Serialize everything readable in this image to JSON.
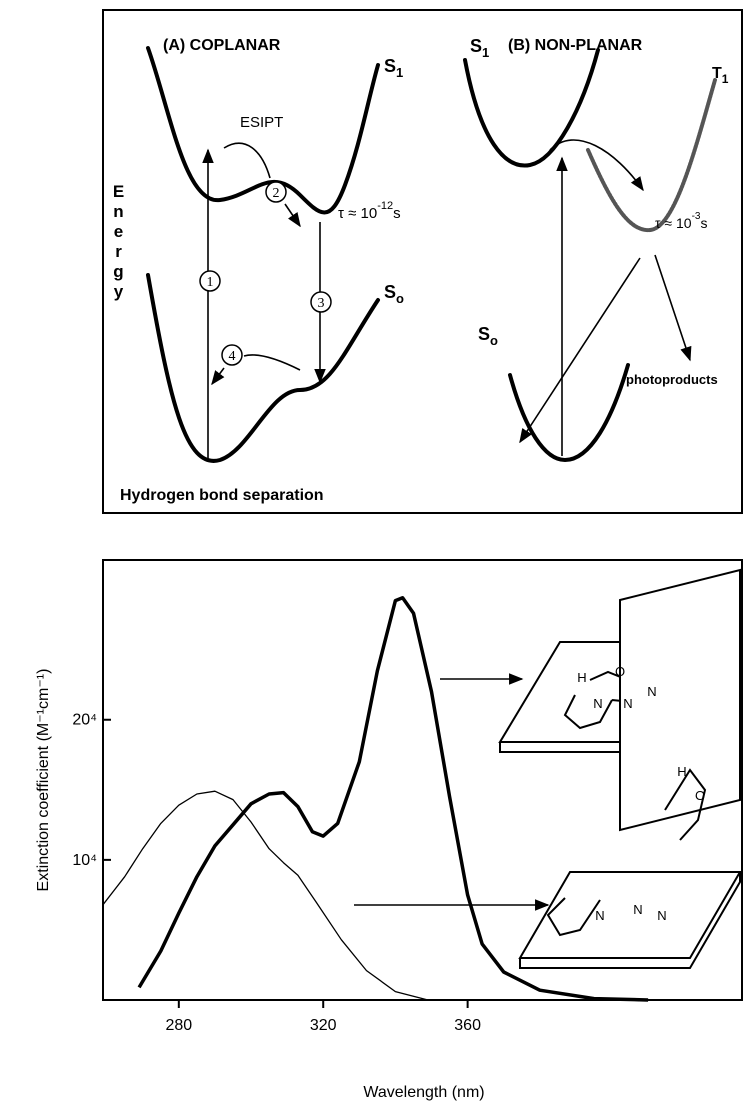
{
  "diagram": {
    "panel_a": {
      "title": "(A) COPLANAR",
      "s1": "S",
      "s1_sub": "1",
      "s0": "S",
      "s0_sub": "o",
      "esipt": "ESIPT",
      "steps": [
        "1",
        "2",
        "3",
        "4"
      ],
      "lifetime": {
        "prefix": "τ ≈ 10",
        "exp": "-12",
        "unit": "s"
      }
    },
    "panel_b": {
      "title": "(B) NON-PLANAR",
      "s1": "S",
      "s1_sub": "1",
      "t1": "T",
      "t1_sub": "1",
      "s0": "S",
      "s0_sub": "o",
      "lifetime": {
        "prefix": "τ ≈ 10",
        "exp": "-3",
        "unit": "s"
      },
      "photoproducts": "photoproducts"
    },
    "energy_axis": "Energy",
    "x_axis": "Hydrogen bond separation"
  },
  "chart_data": {
    "type": "line",
    "x_label": "Wavelength (nm)",
    "y_label": "Extinction coefficient  (M⁻¹cm⁻¹)",
    "xlim": [
      259,
      436
    ],
    "xticks": [
      280,
      320,
      360
    ],
    "ylim": [
      0,
      31400
    ],
    "yticks": [
      {
        "value": 10000,
        "label": "10⁴"
      },
      {
        "value": 20000,
        "label": "20⁴"
      }
    ],
    "series": [
      {
        "color": "#000000",
        "x": [
          259,
          265,
          270,
          275,
          280,
          285,
          290,
          295,
          300,
          305,
          309,
          313,
          318,
          325,
          332,
          340,
          349
        ],
        "values": [
          6800,
          8800,
          10800,
          12600,
          13900,
          14700,
          14900,
          14300,
          12700,
          10800,
          9800,
          8900,
          7000,
          4300,
          2100,
          600,
          0
        ]
      },
      {
        "color": "#000000",
        "x": [
          269,
          275,
          280,
          285,
          290,
          295,
          300,
          305,
          309,
          313,
          317,
          320,
          324,
          330,
          335,
          340,
          342,
          345,
          350,
          355,
          360,
          364,
          370,
          380,
          395,
          410
        ],
        "values": [
          900,
          3500,
          6200,
          8800,
          11000,
          12500,
          14000,
          14700,
          14800,
          13800,
          12000,
          11700,
          12600,
          17000,
          23500,
          28500,
          28700,
          27600,
          22000,
          14500,
          7500,
          4000,
          2000,
          700,
          100,
          0
        ]
      }
    ]
  },
  "insets": [
    {
      "labels": [
        "H",
        "O",
        "N",
        "N",
        "N"
      ]
    },
    {
      "labels": [
        "H",
        "O",
        "N",
        "N",
        "N"
      ]
    }
  ]
}
